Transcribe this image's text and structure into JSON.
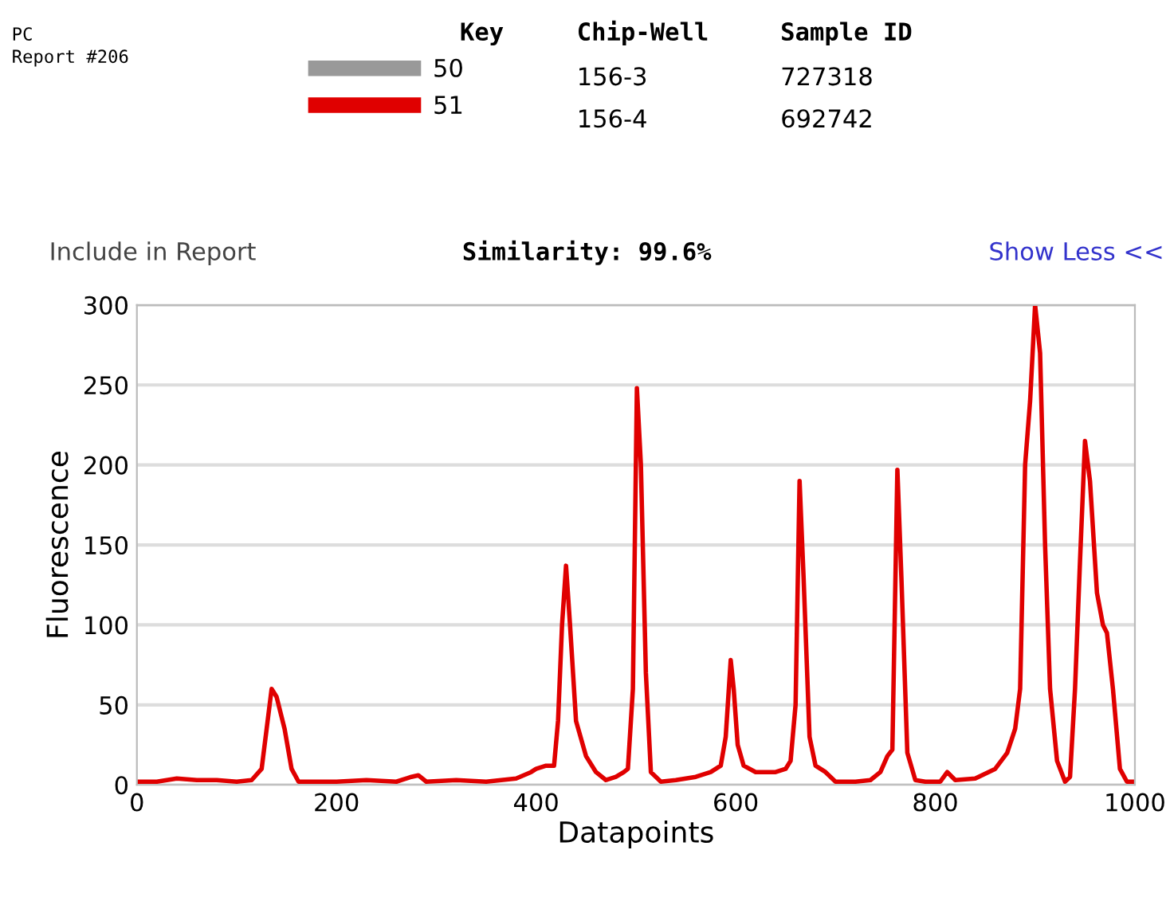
{
  "chart_data": {
    "type": "line",
    "xlabel": "Datapoints",
    "ylabel": "Fluorescence",
    "xlim": [
      0,
      1000
    ],
    "xticks": [
      0,
      200,
      400,
      600,
      800,
      1000
    ],
    "ylim": [
      0,
      300
    ],
    "yticks": [
      0,
      50,
      100,
      150,
      200,
      250,
      300
    ],
    "grid": "y",
    "legend": "top",
    "marker": "none",
    "line_style": "solid",
    "annotations": [
      "PC",
      "Report #206",
      "Key",
      "Chip-Well",
      "Sample ID",
      "156-3",
      "727318",
      "156-4",
      "692742",
      "Include in Report",
      "Similarity: 99.6%",
      "Show Less <<"
    ],
    "series": [
      {
        "name": "50",
        "color": "#999999",
        "values": [
          null,
          null,
          null,
          null,
          null,
          null,
          null,
          null,
          null,
          null,
          null,
          null,
          null,
          null,
          null,
          null,
          null,
          null,
          null,
          null,
          null,
          null,
          null,
          null,
          null,
          null,
          null,
          null,
          null,
          null,
          null,
          null,
          null,
          null,
          null,
          null,
          null,
          null,
          null,
          null,
          null,
          null,
          null,
          null,
          null,
          null,
          null,
          null,
          null,
          null,
          null,
          null,
          null,
          null,
          null,
          null,
          null,
          null,
          null,
          null,
          null,
          null,
          null,
          null,
          null,
          null,
          null,
          null,
          null,
          null,
          null,
          null,
          null,
          null,
          null,
          null,
          null,
          null,
          null,
          null,
          null,
          null,
          null,
          null,
          null,
          null,
          null,
          null,
          null,
          null,
          null,
          null,
          null,
          null,
          null,
          null,
          null,
          null,
          null,
          null,
          null,
          null,
          null
        ]
      },
      {
        "name": "51",
        "color": "#e00000",
        "x": [
          0,
          20,
          40,
          60,
          80,
          100,
          115,
          125,
          130,
          135,
          140,
          148,
          155,
          162,
          180,
          200,
          230,
          260,
          275,
          282,
          290,
          320,
          350,
          380,
          395,
          400,
          410,
          418,
          422,
          426,
          430,
          434,
          440,
          450,
          460,
          470,
          480,
          488,
          492,
          497,
          501,
          505,
          510,
          515,
          525,
          540,
          560,
          575,
          585,
          590,
          595,
          598,
          602,
          608,
          620,
          640,
          650,
          655,
          660,
          664,
          668,
          674,
          680,
          690,
          700,
          720,
          735,
          745,
          752,
          757,
          762,
          766,
          772,
          780,
          790,
          805,
          812,
          820,
          840,
          860,
          872,
          880,
          885,
          890,
          895,
          900,
          905,
          910,
          915,
          922,
          930,
          935,
          940,
          945,
          950,
          955,
          962,
          968,
          972,
          978,
          985,
          992,
          1000
        ],
        "values": [
          2,
          2,
          4,
          3,
          3,
          2,
          3,
          10,
          35,
          60,
          55,
          35,
          10,
          2,
          2,
          2,
          3,
          2,
          5,
          6,
          2,
          3,
          2,
          4,
          8,
          10,
          12,
          12,
          40,
          100,
          137,
          100,
          40,
          18,
          8,
          3,
          5,
          8,
          10,
          60,
          248,
          200,
          70,
          8,
          2,
          3,
          5,
          8,
          12,
          30,
          78,
          60,
          25,
          12,
          8,
          8,
          10,
          15,
          50,
          190,
          130,
          30,
          12,
          8,
          2,
          2,
          3,
          8,
          18,
          22,
          197,
          130,
          20,
          3,
          2,
          2,
          8,
          3,
          4,
          10,
          20,
          35,
          60,
          200,
          240,
          300,
          270,
          150,
          60,
          15,
          2,
          5,
          60,
          140,
          215,
          190,
          120,
          100,
          95,
          60,
          10,
          2,
          2
        ]
      }
    ]
  }
}
